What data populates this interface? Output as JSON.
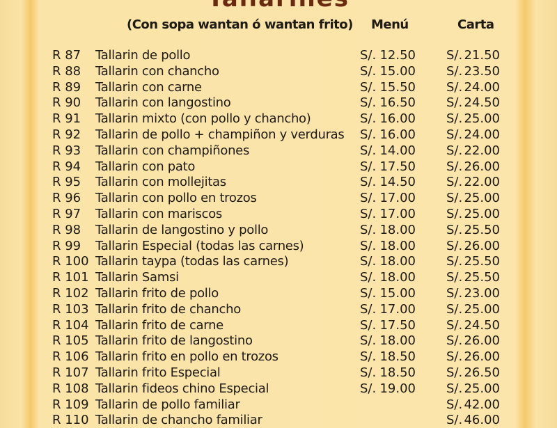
{
  "title_fragment": "Tallarines",
  "header": {
    "subtitle": "(Con sopa wantan ó wantan frito)",
    "menu_label": "Menú",
    "carta_label": "Carta"
  },
  "currency": "S/.",
  "items": [
    {
      "code": "R 87",
      "name": "Tallarin de pollo",
      "menu": "12.50",
      "carta": "21.50"
    },
    {
      "code": "R 88",
      "name": "Tallarin con chancho",
      "menu": "15.00",
      "carta": "23.50"
    },
    {
      "code": "R 89",
      "name": "Tallarin con carne",
      "menu": "15.50",
      "carta": "24.00"
    },
    {
      "code": "R 90",
      "name": "Tallarin con langostino",
      "menu": "16.50",
      "carta": "24.50"
    },
    {
      "code": "R 91",
      "name": "Tallarin mixto (con pollo y chancho)",
      "menu": "16.00",
      "carta": "25.00"
    },
    {
      "code": "R 92",
      "name": "Tallarin de pollo + champiñon y verduras",
      "menu": "16.00",
      "carta": "24.00"
    },
    {
      "code": "R 93",
      "name": "Tallarin con champiñones",
      "menu": "14.00",
      "carta": "22.00"
    },
    {
      "code": "R 94",
      "name": "Tallarin con pato",
      "menu": "17.50",
      "carta": "26.00"
    },
    {
      "code": "R 95",
      "name": "Tallarin con mollejitas",
      "menu": "14.50",
      "carta": "22.00"
    },
    {
      "code": "R 96",
      "name": "Tallarin con pollo en trozos",
      "menu": "17.00",
      "carta": "25.00"
    },
    {
      "code": "R 97",
      "name": "Tallarin con mariscos",
      "menu": "17.00",
      "carta": "25.00"
    },
    {
      "code": "R 98",
      "name": "Tallarin de langostino y pollo",
      "menu": "18.00",
      "carta": "25.50"
    },
    {
      "code": "R 99",
      "name": "Tallarin Especial (todas las carnes)",
      "menu": "18.00",
      "carta": "26.00"
    },
    {
      "code": "R 100",
      "name": "Tallarin taypa (todas las carnes)",
      "menu": "18.00",
      "carta": "25.50"
    },
    {
      "code": "R 101",
      "name": "Tallarin Samsi",
      "menu": "18.00",
      "carta": "25.50"
    },
    {
      "code": "R 102",
      "name": "Tallarin frito de pollo",
      "menu": "15.00",
      "carta": "23.00"
    },
    {
      "code": "R 103",
      "name": "Tallarin frito de chancho",
      "menu": "17.00",
      "carta": "25.00"
    },
    {
      "code": "R 104",
      "name": "Tallarin frito de carne",
      "menu": "17.50",
      "carta": "24.50"
    },
    {
      "code": "R 105",
      "name": "Tallarin frito de langostino",
      "menu": "18.00",
      "carta": "26.00"
    },
    {
      "code": "R 106",
      "name": "Tallarin frito en pollo en trozos",
      "menu": "18.50",
      "carta": "26.00"
    },
    {
      "code": "R 107",
      "name": "Tallarin frito Especial",
      "menu": "18.50",
      "carta": "26.50"
    },
    {
      "code": "R 108",
      "name": "Tallarin fideos chino Especial",
      "menu": "19.00",
      "carta": "25.00"
    },
    {
      "code": "R 109",
      "name": "Tallarin de pollo familiar",
      "menu": "",
      "carta": "42.00"
    },
    {
      "code": "R 110",
      "name": "Tallarin de chancho familiar",
      "menu": "",
      "carta": "46.00"
    }
  ]
}
